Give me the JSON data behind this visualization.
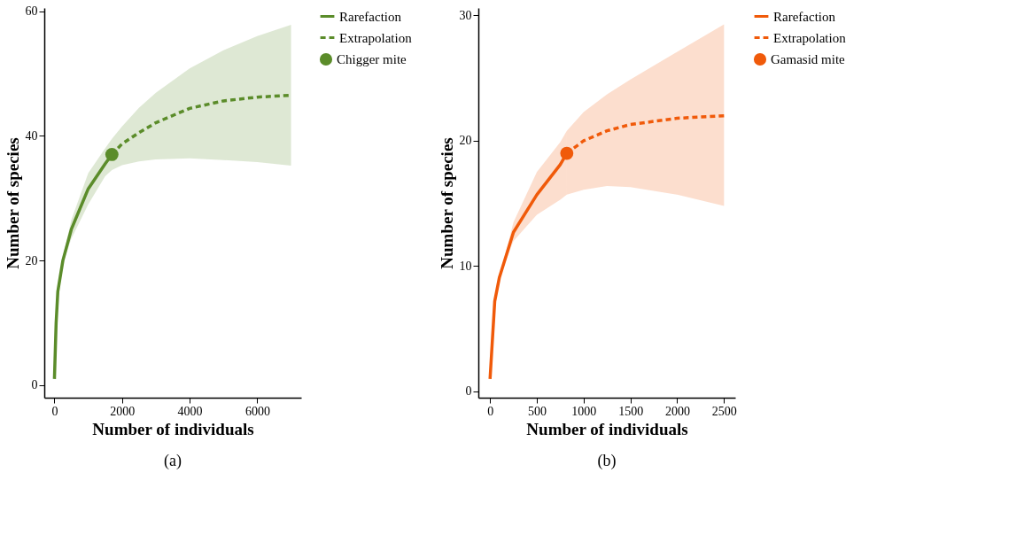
{
  "chart_data": [
    {
      "type": "line",
      "xlabel": "Number of individuals",
      "ylabel": "Number of species",
      "annotations": [
        "(a)"
      ],
      "xlim": [
        -300,
        7300
      ],
      "ylim": [
        -2,
        60.5
      ],
      "xticks": [
        0,
        2000,
        4000,
        6000
      ],
      "yticks": [
        0,
        20,
        40,
        60
      ],
      "grid": false,
      "legend": "right",
      "series": [
        {
          "name": "Rarefaction",
          "color": "#5b8c2a",
          "line_style": "solid",
          "x": [
            0,
            50,
            100,
            250,
            500,
            1000,
            1500,
            1700
          ],
          "values": [
            1,
            10,
            15,
            20,
            25,
            31.5,
            35.5,
            37
          ],
          "lower": [
            1,
            10,
            15,
            19.5,
            23.5,
            29,
            33.5,
            34.5
          ],
          "upper": [
            1,
            10,
            15,
            20.5,
            26.5,
            34,
            38,
            39.5
          ]
        },
        {
          "name": "Extrapolation",
          "color": "#5b8c2a",
          "line_style": "dashed",
          "x": [
            1700,
            2000,
            2500,
            3000,
            4000,
            5000,
            6000,
            7000
          ],
          "values": [
            37,
            38.7,
            40.5,
            42.1,
            44.4,
            45.6,
            46.2,
            46.5
          ],
          "lower": [
            34.5,
            35.3,
            35.9,
            36.2,
            36.4,
            36.1,
            35.8,
            35.2
          ],
          "upper": [
            39.5,
            41.5,
            44.5,
            46.9,
            50.8,
            53.7,
            56,
            57.8
          ]
        },
        {
          "name": "Chigger mite",
          "type": "scatter",
          "marker": "circle",
          "color": "#5b8c2a",
          "x": [
            1700
          ],
          "values": [
            37
          ]
        }
      ]
    },
    {
      "type": "line",
      "xlabel": "Number of individuals",
      "ylabel": "Number of species",
      "annotations": [
        "(b)"
      ],
      "xlim": [
        -125,
        2620
      ],
      "ylim": [
        -0.5,
        30.6
      ],
      "xticks": [
        0,
        500,
        1000,
        1500,
        2000,
        2500
      ],
      "yticks": [
        0,
        10,
        20,
        30
      ],
      "grid": false,
      "legend": "right",
      "series": [
        {
          "name": "Rarefaction",
          "color": "#f05a0a",
          "line_style": "solid",
          "x": [
            0,
            50,
            100,
            250,
            500,
            750,
            820
          ],
          "values": [
            1,
            7.2,
            9.1,
            12.7,
            15.7,
            18.1,
            19
          ],
          "lower": [
            1,
            7.2,
            9.1,
            12,
            14.1,
            15.3,
            15.7
          ],
          "upper": [
            1,
            7.2,
            9.1,
            13.5,
            17.5,
            19.9,
            20.8
          ]
        },
        {
          "name": "Extrapolation",
          "color": "#f05a0a",
          "line_style": "dashed",
          "x": [
            820,
            1000,
            1250,
            1500,
            2000,
            2500
          ],
          "values": [
            19,
            20,
            20.8,
            21.3,
            21.8,
            22
          ],
          "lower": [
            15.7,
            16.1,
            16.4,
            16.3,
            15.7,
            14.8
          ],
          "upper": [
            20.8,
            22.3,
            23.7,
            24.9,
            27.1,
            29.3
          ]
        },
        {
          "name": "Gamasid mite",
          "type": "scatter",
          "marker": "circle",
          "color": "#f05a0a",
          "x": [
            820
          ],
          "values": [
            19
          ]
        }
      ]
    }
  ]
}
